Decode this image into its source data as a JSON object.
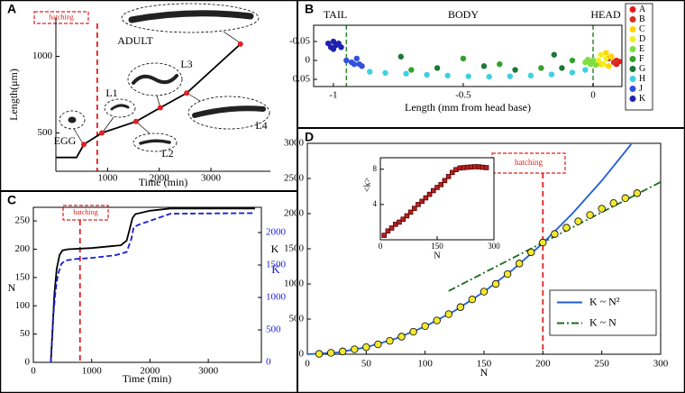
{
  "chart_data": [
    {
      "panel": "A",
      "type": "line",
      "xlabel": "Time (min)",
      "ylabel": "Length(μm)",
      "xlim": [
        0,
        4150
      ],
      "xticks": [
        1000,
        2000,
        3000
      ],
      "ylim": [
        250,
        1250
      ],
      "yticks": [
        500,
        1000
      ],
      "hatching": {
        "x": 800,
        "label": "hatching",
        "color": "#e02020"
      },
      "stage_labels": [
        "EGG",
        "L1",
        "L2",
        "L3",
        "L4",
        "ADULT"
      ],
      "series": [
        {
          "color": "#000000",
          "mode": "line",
          "x": [
            0,
            400,
            540,
            890,
            1550,
            2020,
            2530,
            3570
          ],
          "values": [
            340,
            340,
            425,
            500,
            575,
            665,
            760,
            1080
          ]
        },
        {
          "color": "#e02020",
          "mode": "markers",
          "x": [
            540,
            890,
            1550,
            2020,
            2530,
            3570
          ],
          "values": [
            425,
            500,
            575,
            665,
            760,
            1080
          ]
        }
      ]
    },
    {
      "panel": "B",
      "type": "scatter",
      "xlabel": "Length (mm from head base)",
      "xlim": [
        -1.076,
        0.111
      ],
      "xticks": [
        -1,
        -0.5,
        0
      ],
      "ylim": [
        0.069,
        -0.093
      ],
      "yticks": [
        0.05,
        0,
        -0.05
      ],
      "region_labels": [
        "TAIL",
        "BODY",
        "HEAD"
      ],
      "boundaries": [
        -0.95,
        0
      ],
      "boundary_color": "#2e8b2e",
      "legend": "right",
      "series": [
        {
          "name": "A",
          "color": "#e31a1c",
          "x": [
            0.07,
            0.09,
            0.1
          ],
          "values": [
            -0.01,
            0.01,
            0.003
          ]
        },
        {
          "name": "B",
          "color": "#d7301f",
          "x": [
            0.06,
            0.08,
            0.09
          ],
          "values": [
            -0.005,
            0.005,
            0.0
          ]
        },
        {
          "name": "C",
          "color": "#ffd700",
          "x": [
            0.03,
            0.05,
            0.06,
            0.07
          ],
          "values": [
            0.01,
            -0.02,
            0.015,
            -0.01
          ]
        },
        {
          "name": "D",
          "color": "#f0f020",
          "x": [
            0.02,
            0.03,
            0.04,
            0.05
          ],
          "values": [
            0,
            -0.015,
            0.01,
            -0.005
          ]
        },
        {
          "name": "E",
          "color": "#7fdf40",
          "x": [
            -0.03,
            -0.02,
            -0.01,
            0.0,
            0.01
          ],
          "values": [
            0.005,
            -0.002,
            0.01,
            0.0,
            0.012
          ]
        },
        {
          "name": "F",
          "color": "#33a02c",
          "x": [
            -0.7,
            -0.5,
            -0.36,
            -0.2,
            -0.08
          ],
          "values": [
            0.025,
            -0.005,
            0.01,
            0.02,
            0.0
          ]
        },
        {
          "name": "G",
          "color": "#1b7837",
          "x": [
            -0.74,
            -0.6,
            -0.42,
            -0.3,
            -0.15,
            -0.12
          ],
          "values": [
            -0.01,
            0.02,
            0.015,
            0.025,
            -0.015,
            0.02
          ]
        },
        {
          "name": "H",
          "color": "#40d0e0",
          "x": [
            -0.86,
            -0.8,
            -0.72,
            -0.64,
            -0.56,
            -0.48,
            -0.4,
            -0.32,
            -0.24,
            -0.16,
            -0.08,
            -0.03
          ],
          "values": [
            0.03,
            0.033,
            0.035,
            0.038,
            0.04,
            0.042,
            0.043,
            0.042,
            0.04,
            0.037,
            0.032,
            0.025
          ]
        },
        {
          "name": "J",
          "color": "#3050e0",
          "x": [
            -0.95,
            -0.93,
            -0.92,
            -0.9,
            -0.89,
            -0.91
          ],
          "values": [
            0,
            0.005,
            0.01,
            0.01,
            0.015,
            -0.005
          ]
        },
        {
          "name": "K",
          "color": "#2020b0",
          "x": [
            -1.02,
            -1.0,
            -0.99,
            -1.01,
            -0.98,
            -0.97,
            -1.0
          ],
          "values": [
            -0.045,
            -0.05,
            -0.04,
            -0.035,
            -0.045,
            -0.035,
            -0.03
          ]
        }
      ]
    },
    {
      "panel": "C",
      "type": "line",
      "xlabel": "Time (min)",
      "ylabel": "N",
      "y2label": "K",
      "y2_color": "#1a1ad8",
      "xlim": [
        0,
        3910
      ],
      "xticks": [
        0,
        1000,
        2000,
        3000
      ],
      "ylim": [
        0,
        274
      ],
      "yticks": [
        0,
        50,
        100,
        150,
        200,
        250
      ],
      "y2lim": [
        0,
        2389
      ],
      "y2ticks": [
        0,
        500,
        1000,
        1500,
        2000
      ],
      "hatching": {
        "x": 800,
        "label": "hatching",
        "color": "#e02020"
      },
      "series": [
        {
          "color": "#000000",
          "x": [
            300,
            330,
            360,
            400,
            450,
            500,
            600,
            1000,
            1500,
            1600,
            1650,
            1700,
            1750,
            2000,
            2350,
            3800
          ],
          "values": [
            0,
            60,
            120,
            165,
            190,
            198,
            200,
            202,
            207,
            215,
            235,
            255,
            262,
            268,
            272,
            272
          ]
        },
        {
          "color": "#1a1ad8",
          "dash": "6 3",
          "axis": "y2",
          "x": [
            300,
            340,
            380,
            420,
            480,
            550,
            700,
            1000,
            1400,
            1600,
            1680,
            1720,
            1800,
            2000,
            2350,
            3800
          ],
          "values": [
            0,
            700,
            1100,
            1350,
            1520,
            1570,
            1590,
            1610,
            1650,
            1700,
            1900,
            2080,
            2120,
            2180,
            2290,
            2300
          ]
        }
      ]
    },
    {
      "panel": "D",
      "type": "scatter",
      "xlabel": "N",
      "ylabel": "K",
      "legend": "lower right",
      "xlim": [
        0,
        300
      ],
      "xticks": [
        0,
        50,
        100,
        150,
        200,
        250,
        300
      ],
      "ylim": [
        0,
        3000
      ],
      "yticks": [
        0,
        500,
        1000,
        1500,
        2000,
        2500,
        3000
      ],
      "hatching": {
        "x": 200,
        "label": "hatching",
        "color": "#e02020"
      },
      "series": [
        {
          "name": "K ~ N²",
          "color": "#1f5fd6",
          "mode": "line",
          "x": [
            0,
            25,
            50,
            75,
            100,
            125,
            150,
            175,
            200,
            225,
            250,
            275
          ],
          "values": [
            0,
            25,
            99,
            222,
            395,
            617,
            889,
            1210,
            1580,
            2000,
            2469,
            2987
          ]
        },
        {
          "name": "K ~ N",
          "color": "#1b6b1b",
          "mode": "line",
          "dash": "8 3 2 3",
          "x": [
            120,
            300
          ],
          "values": [
            900,
            2450
          ]
        },
        {
          "color": "#f2e830",
          "edge": "#000000",
          "mode": "markers",
          "x": [
            10,
            20,
            30,
            40,
            50,
            60,
            70,
            80,
            90,
            100,
            110,
            120,
            130,
            140,
            150,
            160,
            170,
            180,
            190,
            200,
            210,
            220,
            230,
            240,
            250,
            260,
            270,
            280
          ],
          "values": [
            5,
            20,
            40,
            70,
            100,
            140,
            190,
            250,
            320,
            400,
            480,
            570,
            670,
            780,
            890,
            1000,
            1140,
            1290,
            1450,
            1590,
            1710,
            1800,
            1890,
            1980,
            2070,
            2150,
            2220,
            2290
          ]
        }
      ]
    },
    {
      "type": "scatter",
      "xlabel": "N",
      "ylabel": "<k>",
      "xlim": [
        0,
        300
      ],
      "xticks": [
        0,
        150,
        300
      ],
      "ylim": [
        0,
        9.3
      ],
      "yticks": [
        4,
        8
      ],
      "series": [
        {
          "color": "#b22222",
          "edge": "#5a0000",
          "mode": "markers",
          "marker": "square",
          "x": [
            10,
            20,
            30,
            40,
            50,
            60,
            70,
            80,
            90,
            100,
            110,
            120,
            130,
            140,
            150,
            160,
            170,
            180,
            190,
            200,
            210,
            220,
            230,
            240,
            250,
            260,
            270,
            280
          ],
          "values": [
            0.5,
            1,
            1.33,
            1.75,
            2,
            2.33,
            2.71,
            3.13,
            3.56,
            4,
            4.36,
            4.75,
            5.15,
            5.57,
            5.93,
            6.25,
            6.71,
            7.17,
            7.63,
            7.95,
            8.14,
            8.18,
            8.22,
            8.25,
            8.28,
            8.27,
            8.22,
            8.18
          ]
        }
      ]
    }
  ]
}
